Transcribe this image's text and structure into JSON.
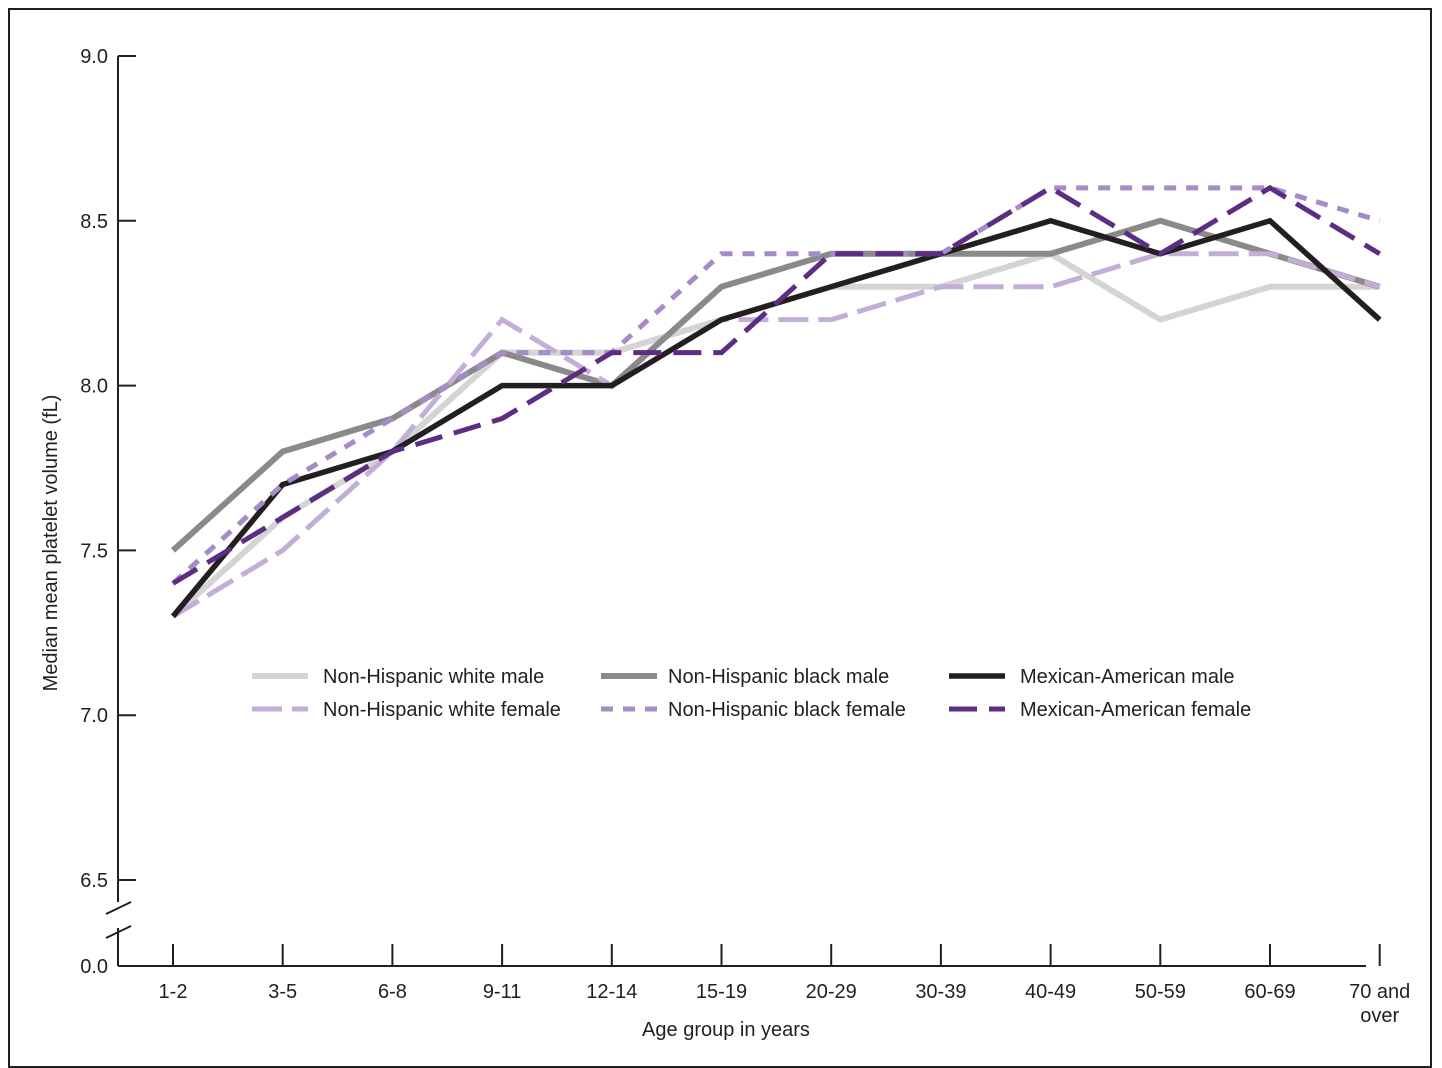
{
  "chart_data": {
    "type": "line",
    "xlabel": "Age group in years",
    "ylabel": "Median mean platelet volume (fL)",
    "categories": [
      "1-2",
      "3-5",
      "6-8",
      "9-11",
      "12-14",
      "15-19",
      "20-29",
      "30-39",
      "40-49",
      "50-59",
      "60-69",
      "70 and over"
    ],
    "yticks": [
      "9.0",
      "8.5",
      "8.0",
      "7.5",
      "7.0",
      "6.5"
    ],
    "ytick_values": [
      9.0,
      8.5,
      8.0,
      7.5,
      7.0,
      6.5
    ],
    "ybase_label": "0.0",
    "ylim": [
      6.5,
      9.0
    ],
    "axis_break": true,
    "grid": false,
    "legend_position": "center",
    "series": [
      {
        "name": "Non-Hispanic white male",
        "color": "#d4d4d4",
        "style": "solid",
        "values": [
          7.3,
          7.6,
          7.8,
          8.1,
          8.1,
          8.2,
          8.3,
          8.3,
          8.4,
          8.2,
          8.3,
          8.3
        ]
      },
      {
        "name": "Non-Hispanic black male",
        "color": "#8a8a8a",
        "style": "solid",
        "values": [
          7.5,
          7.8,
          7.9,
          8.1,
          8.0,
          8.3,
          8.4,
          8.4,
          8.4,
          8.5,
          8.4,
          8.3
        ]
      },
      {
        "name": "Mexican-American male",
        "color": "#231f20",
        "style": "solid",
        "values": [
          7.3,
          7.7,
          7.8,
          8.0,
          8.0,
          8.2,
          8.3,
          8.4,
          8.5,
          8.4,
          8.5,
          8.2
        ]
      },
      {
        "name": "Non-Hispanic white female",
        "color": "#c2aed6",
        "style": "dash",
        "values": [
          7.3,
          7.5,
          7.8,
          8.2,
          8.0,
          8.2,
          8.2,
          8.3,
          8.3,
          8.4,
          8.4,
          8.3
        ]
      },
      {
        "name": "Non-Hispanic black female",
        "color": "#a58bc7",
        "style": "dot",
        "values": [
          7.4,
          7.7,
          7.9,
          8.1,
          8.1,
          8.4,
          8.4,
          8.4,
          8.6,
          8.6,
          8.6,
          8.5
        ]
      },
      {
        "name": "Mexican-American female",
        "color": "#5c2d82",
        "style": "dash",
        "values": [
          7.4,
          7.6,
          7.8,
          7.9,
          8.1,
          8.1,
          8.4,
          8.4,
          8.6,
          8.4,
          8.6,
          8.4
        ]
      }
    ]
  }
}
